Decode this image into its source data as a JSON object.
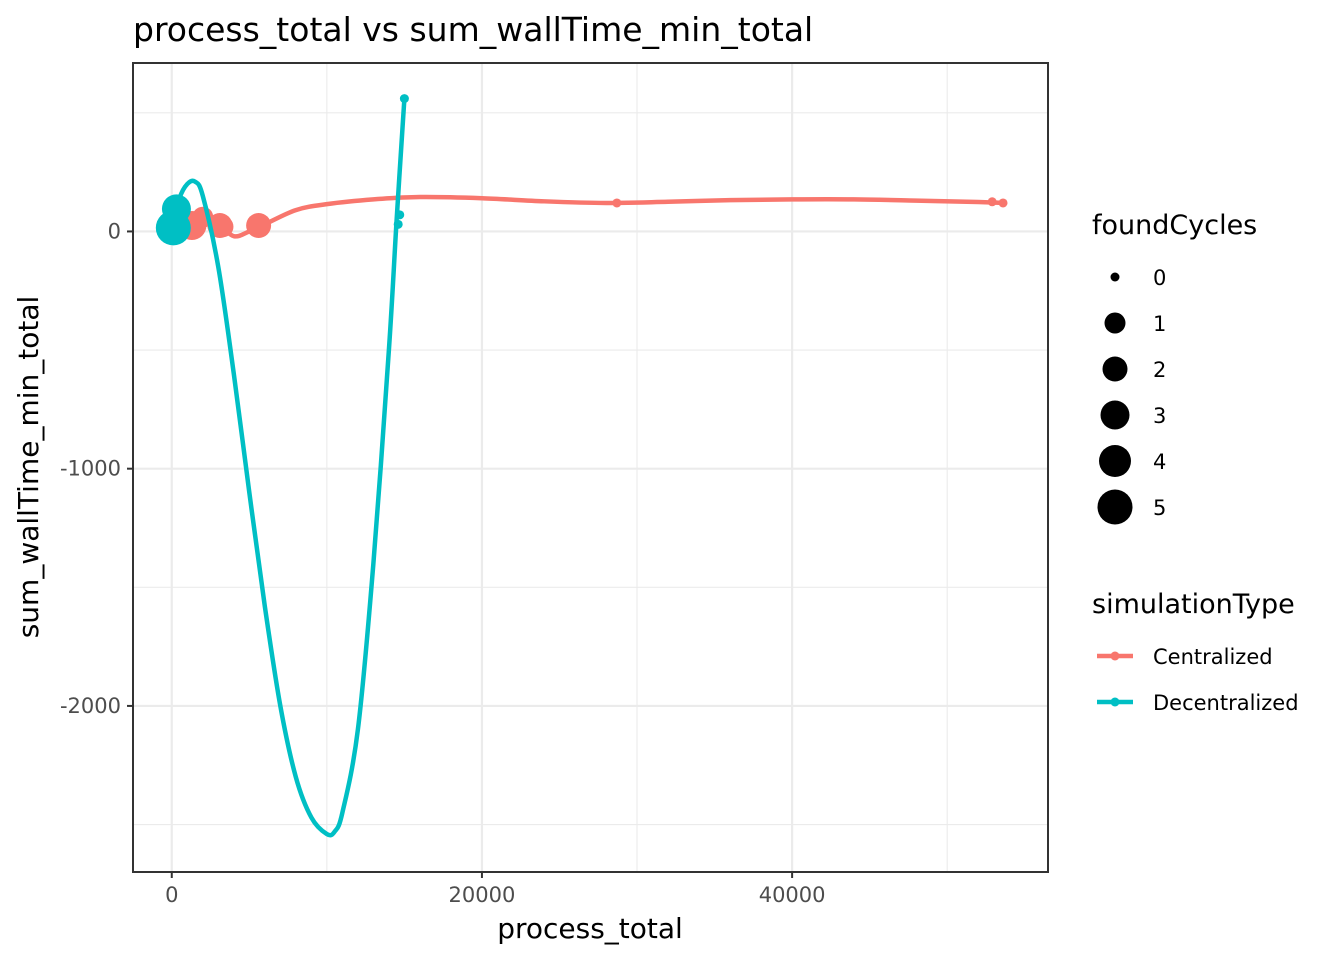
{
  "chart_data": {
    "type": "line",
    "title": "process_total  vs  sum_wallTime_min_total",
    "xlabel": "process_total",
    "ylabel": "sum_wallTime_min_total",
    "xlim": [
      -2500,
      56500
    ],
    "ylim": [
      -2700,
      710
    ],
    "x_ticks": [
      0,
      20000,
      40000
    ],
    "x_tick_labels": [
      "0",
      "20000",
      "40000"
    ],
    "y_ticks": [
      -2000,
      -1000,
      0
    ],
    "y_tick_labels": [
      "-2000",
      "-1000",
      "0"
    ],
    "grid": true,
    "legend_position": "right",
    "size_legend": {
      "title": "foundCycles",
      "values": [
        0,
        1,
        2,
        3,
        4,
        5
      ],
      "labels": [
        "0",
        "1",
        "2",
        "3",
        "4",
        "5"
      ]
    },
    "color_legend": {
      "title": "simulationType",
      "entries": [
        {
          "label": "Centralized",
          "color": "#F8766D"
        },
        {
          "label": "Decentralized",
          "color": "#00BFC4"
        }
      ]
    },
    "series": [
      {
        "name": "Centralized",
        "color": "#F8766D",
        "points": [
          {
            "x": 200,
            "y": 15,
            "size": 2
          },
          {
            "x": 1300,
            "y": 25,
            "size": 3
          },
          {
            "x": 2000,
            "y": 60,
            "size": 1
          },
          {
            "x": 3100,
            "y": 25,
            "size": 2
          },
          {
            "x": 3300,
            "y": 20,
            "size": 1
          },
          {
            "x": 5600,
            "y": 25,
            "size": 2
          },
          {
            "x": 28700,
            "y": 120,
            "size": 0
          },
          {
            "x": 52900,
            "y": 125,
            "size": 0
          },
          {
            "x": 53600,
            "y": 120,
            "size": 0
          }
        ],
        "smooth": [
          {
            "x": 0,
            "y": 10
          },
          {
            "x": 1000,
            "y": 30
          },
          {
            "x": 2000,
            "y": 55
          },
          {
            "x": 3000,
            "y": 30
          },
          {
            "x": 4000,
            "y": -20
          },
          {
            "x": 5000,
            "y": 0
          },
          {
            "x": 6000,
            "y": 30
          },
          {
            "x": 8000,
            "y": 90
          },
          {
            "x": 10000,
            "y": 115
          },
          {
            "x": 13000,
            "y": 135
          },
          {
            "x": 16000,
            "y": 145
          },
          {
            "x": 20000,
            "y": 140
          },
          {
            "x": 24000,
            "y": 127
          },
          {
            "x": 28000,
            "y": 120
          },
          {
            "x": 32000,
            "y": 125
          },
          {
            "x": 36000,
            "y": 132
          },
          {
            "x": 40000,
            "y": 135
          },
          {
            "x": 44000,
            "y": 135
          },
          {
            "x": 48000,
            "y": 130
          },
          {
            "x": 52000,
            "y": 124
          },
          {
            "x": 53600,
            "y": 120
          }
        ]
      },
      {
        "name": "Decentralized",
        "color": "#00BFC4",
        "points": [
          {
            "x": 100,
            "y": 15,
            "size": 5
          },
          {
            "x": 300,
            "y": 95,
            "size": 3
          },
          {
            "x": 14600,
            "y": 30,
            "size": 0
          },
          {
            "x": 14700,
            "y": 70,
            "size": 0
          },
          {
            "x": 15000,
            "y": 560,
            "size": 0
          }
        ],
        "smooth": [
          {
            "x": 100,
            "y": 20
          },
          {
            "x": 500,
            "y": 140
          },
          {
            "x": 1000,
            "y": 200
          },
          {
            "x": 1500,
            "y": 210
          },
          {
            "x": 2000,
            "y": 150
          },
          {
            "x": 3000,
            "y": -150
          },
          {
            "x": 4000,
            "y": -600
          },
          {
            "x": 5000,
            "y": -1100
          },
          {
            "x": 6000,
            "y": -1580
          },
          {
            "x": 7000,
            "y": -2000
          },
          {
            "x": 8000,
            "y": -2300
          },
          {
            "x": 9000,
            "y": -2470
          },
          {
            "x": 10000,
            "y": -2540
          },
          {
            "x": 10500,
            "y": -2530
          },
          {
            "x": 11000,
            "y": -2450
          },
          {
            "x": 12000,
            "y": -2100
          },
          {
            "x": 13000,
            "y": -1400
          },
          {
            "x": 14000,
            "y": -500
          },
          {
            "x": 14500,
            "y": 50
          },
          {
            "x": 15000,
            "y": 560
          }
        ]
      }
    ]
  }
}
